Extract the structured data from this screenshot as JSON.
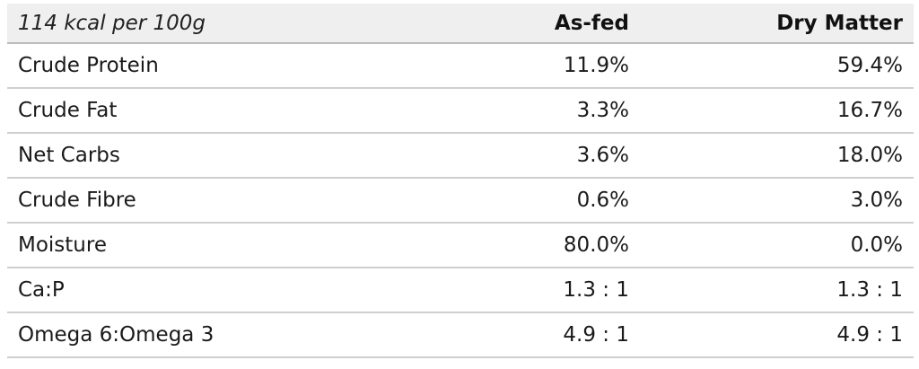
{
  "table": {
    "header": {
      "label": "114 kcal per 100g",
      "col_as_fed": "As-fed",
      "col_dry_matter": "Dry Matter"
    },
    "rows": [
      {
        "name": "Crude Protein",
        "as_fed": "11.9%",
        "dry_matter": "59.4%"
      },
      {
        "name": "Crude Fat",
        "as_fed": "3.3%",
        "dry_matter": "16.7%"
      },
      {
        "name": "Net Carbs",
        "as_fed": "3.6%",
        "dry_matter": "18.0%"
      },
      {
        "name": "Crude Fibre",
        "as_fed": "0.6%",
        "dry_matter": "3.0%"
      },
      {
        "name": "Moisture",
        "as_fed": "80.0%",
        "dry_matter": "0.0%"
      },
      {
        "name": "Ca:P",
        "as_fed": "1.3 : 1",
        "dry_matter": "1.3 : 1"
      },
      {
        "name": "Omega 6:Omega 3",
        "as_fed": "4.9 : 1",
        "dry_matter": "4.9 : 1"
      }
    ]
  }
}
